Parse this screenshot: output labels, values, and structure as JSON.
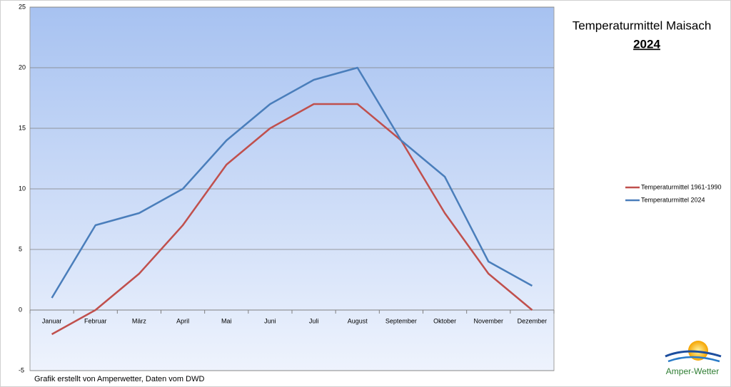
{
  "chart_data": {
    "type": "line",
    "title": "Temperaturmittel Maisach",
    "subtitle": "2024",
    "footer": "Grafik erstellt von Amperwetter, Daten vom DWD",
    "logo_text": "Amper-Wetter",
    "categories": [
      "Januar",
      "Februar",
      "März",
      "April",
      "Mai",
      "Juni",
      "Juli",
      "August",
      "September",
      "Oktober",
      "November",
      "Dezember"
    ],
    "series": [
      {
        "name": "Temperaturmittel 1961-1990",
        "color": "#c0504d",
        "values": [
          -2,
          0,
          3,
          7,
          12,
          15,
          17,
          17,
          14,
          8,
          3,
          0
        ]
      },
      {
        "name": "Temperaturmittel 2024",
        "color": "#4a7ebb",
        "values": [
          1,
          7,
          8,
          10,
          14,
          17,
          19,
          20,
          14,
          11,
          4,
          2
        ]
      }
    ],
    "ylim": [
      -5,
      25
    ],
    "yticks": [
      -5,
      0,
      5,
      10,
      15,
      20,
      25
    ],
    "grid": true,
    "legend": "right"
  }
}
